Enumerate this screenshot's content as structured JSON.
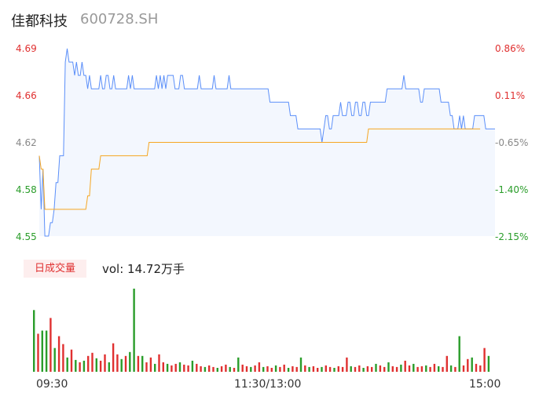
{
  "header": {
    "name": "佳都科技",
    "code": "600728.SH"
  },
  "price_axis": [
    {
      "label": "4.69",
      "color": "#e03030"
    },
    {
      "label": "4.66",
      "color": "#e03030"
    },
    {
      "label": "4.62",
      "color": "#888888"
    },
    {
      "label": "4.58",
      "color": "#2a9d2a"
    },
    {
      "label": "4.55",
      "color": "#2a9d2a"
    }
  ],
  "pct_axis": [
    {
      "label": "0.86%",
      "color": "#e03030"
    },
    {
      "label": "0.11%",
      "color": "#e03030"
    },
    {
      "label": "-0.65%",
      "color": "#888888"
    },
    {
      "label": "-1.40%",
      "color": "#2a9d2a"
    },
    {
      "label": "-2.15%",
      "color": "#2a9d2a"
    }
  ],
  "volume": {
    "badge": "日成交量",
    "text": "vol: 14.72万手"
  },
  "time_axis": [
    "09:30",
    "11:30/13:00",
    "15:00"
  ],
  "colors": {
    "price_line": "#5b8ff9",
    "avg_line": "#f5a623",
    "up": "#e03030",
    "down": "#2a9d2a",
    "area": "#f3f7fe"
  },
  "chart_data": {
    "type": "line",
    "ylim": [
      4.55,
      4.69
    ],
    "x_points": 241,
    "price_series": [
      4.61,
      4.57,
      4.6,
      4.55,
      4.55,
      4.55,
      4.56,
      4.56,
      4.57,
      4.59,
      4.59,
      4.61,
      4.61,
      4.61,
      4.68,
      4.69,
      4.68,
      4.68,
      4.68,
      4.67,
      4.68,
      4.67,
      4.67,
      4.68,
      4.67,
      4.67,
      4.66,
      4.67,
      4.66,
      4.66,
      4.66,
      4.66,
      4.66,
      4.67,
      4.66,
      4.66,
      4.67,
      4.67,
      4.66,
      4.66,
      4.67,
      4.66,
      4.66,
      4.66,
      4.66,
      4.66,
      4.66,
      4.66,
      4.67,
      4.66,
      4.67,
      4.66,
      4.66,
      4.66,
      4.66,
      4.66,
      4.66,
      4.66,
      4.66,
      4.66,
      4.66,
      4.66,
      4.66,
      4.67,
      4.66,
      4.67,
      4.66,
      4.67,
      4.66,
      4.67,
      4.67,
      4.67,
      4.67,
      4.66,
      4.66,
      4.66,
      4.67,
      4.67,
      4.66,
      4.66,
      4.66,
      4.66,
      4.66,
      4.66,
      4.66,
      4.66,
      4.67,
      4.66,
      4.66,
      4.66,
      4.66,
      4.66,
      4.66,
      4.66,
      4.67,
      4.66,
      4.66,
      4.66,
      4.66,
      4.66,
      4.66,
      4.66,
      4.67,
      4.66,
      4.66,
      4.66,
      4.66,
      4.66,
      4.66,
      4.66,
      4.66,
      4.66,
      4.66,
      4.66,
      4.66,
      4.66,
      4.66,
      4.66,
      4.66,
      4.66,
      4.66,
      4.66,
      4.66,
      4.66,
      4.65,
      4.65,
      4.65,
      4.65,
      4.65,
      4.65,
      4.65,
      4.65,
      4.65,
      4.65,
      4.65,
      4.64,
      4.64,
      4.64,
      4.64,
      4.63,
      4.63,
      4.63,
      4.63,
      4.63,
      4.63,
      4.63,
      4.63,
      4.63,
      4.63,
      4.63,
      4.63,
      4.63,
      4.62,
      4.63,
      4.64,
      4.64,
      4.63,
      4.63,
      4.64,
      4.64,
      4.64,
      4.64,
      4.65,
      4.64,
      4.64,
      4.64,
      4.65,
      4.65,
      4.64,
      4.64,
      4.65,
      4.65,
      4.64,
      4.64,
      4.65,
      4.65,
      4.64,
      4.64,
      4.65,
      4.65,
      4.65,
      4.65,
      4.65,
      4.65,
      4.65,
      4.65,
      4.65,
      4.66,
      4.66,
      4.66,
      4.66,
      4.66,
      4.66,
      4.66,
      4.66,
      4.66,
      4.67,
      4.66,
      4.66,
      4.66,
      4.66,
      4.66,
      4.66,
      4.66,
      4.66,
      4.65,
      4.65,
      4.66,
      4.66,
      4.66,
      4.66,
      4.66,
      4.66,
      4.66,
      4.66,
      4.66,
      4.65,
      4.65,
      4.65,
      4.65,
      4.65,
      4.64,
      4.64,
      4.63,
      4.63,
      4.63,
      4.64,
      4.63,
      4.64,
      4.63,
      4.63,
      4.63,
      4.63,
      4.63,
      4.64,
      4.64,
      4.64,
      4.64,
      4.64,
      4.64,
      4.63,
      4.63,
      4.63,
      4.63,
      4.63,
      4.63
    ],
    "avg_series": [
      4.61,
      4.6,
      4.6,
      4.57,
      4.57,
      4.57,
      4.57,
      4.57,
      4.57,
      4.57,
      4.57,
      4.57,
      4.57,
      4.57,
      4.57,
      4.57,
      4.57,
      4.57,
      4.57,
      4.57,
      4.57,
      4.57,
      4.57,
      4.57,
      4.57,
      4.57,
      4.58,
      4.58,
      4.6,
      4.6,
      4.6,
      4.6,
      4.6,
      4.61,
      4.61,
      4.61,
      4.61,
      4.61,
      4.61,
      4.61,
      4.61,
      4.61,
      4.61,
      4.61,
      4.61,
      4.61,
      4.61,
      4.61,
      4.61,
      4.61,
      4.61,
      4.61,
      4.61,
      4.61,
      4.61,
      4.61,
      4.61,
      4.61,
      4.61,
      4.62,
      4.62,
      4.62,
      4.62,
      4.62,
      4.62,
      4.62,
      4.62,
      4.62,
      4.62,
      4.62,
      4.62,
      4.62,
      4.62,
      4.62,
      4.62,
      4.62,
      4.62,
      4.62,
      4.62,
      4.62,
      4.62,
      4.62,
      4.62,
      4.62,
      4.62,
      4.62,
      4.62,
      4.62,
      4.62,
      4.62,
      4.62,
      4.62,
      4.62,
      4.62,
      4.62,
      4.62,
      4.62,
      4.62,
      4.62,
      4.62,
      4.62,
      4.62,
      4.62,
      4.62,
      4.62,
      4.62,
      4.62,
      4.62,
      4.62,
      4.62,
      4.62,
      4.62,
      4.62,
      4.62,
      4.62,
      4.62,
      4.62,
      4.62,
      4.62,
      4.62,
      4.62,
      4.62,
      4.62,
      4.62,
      4.62,
      4.62,
      4.62,
      4.62,
      4.62,
      4.62,
      4.62,
      4.62,
      4.62,
      4.62,
      4.62,
      4.62,
      4.62,
      4.62,
      4.62,
      4.62,
      4.62,
      4.62,
      4.62,
      4.62,
      4.62,
      4.62,
      4.62,
      4.62,
      4.62,
      4.62,
      4.62,
      4.62,
      4.62,
      4.62,
      4.62,
      4.62,
      4.62,
      4.62,
      4.62,
      4.62,
      4.62,
      4.62,
      4.62,
      4.62,
      4.62,
      4.62,
      4.62,
      4.62,
      4.62,
      4.62,
      4.62,
      4.62,
      4.62,
      4.62,
      4.62,
      4.62,
      4.62,
      4.63,
      4.63,
      4.63,
      4.63,
      4.63,
      4.63,
      4.63,
      4.63,
      4.63,
      4.63,
      4.63,
      4.63,
      4.63,
      4.63,
      4.63,
      4.63,
      4.63,
      4.63,
      4.63,
      4.63,
      4.63,
      4.63,
      4.63,
      4.63,
      4.63,
      4.63,
      4.63,
      4.63,
      4.63,
      4.63,
      4.63,
      4.63,
      4.63,
      4.63,
      4.63,
      4.63,
      4.63,
      4.63,
      4.63,
      4.63,
      4.63,
      4.63,
      4.63,
      4.63,
      4.63,
      4.63,
      4.63,
      4.63,
      4.63,
      4.63,
      4.63,
      4.63,
      4.63,
      4.63,
      4.63,
      4.63,
      4.63,
      4.63,
      4.63,
      4.63,
      4.63
    ],
    "volume_bars": [
      {
        "v": 78,
        "c": "down"
      },
      {
        "v": 48,
        "c": "up"
      },
      {
        "v": 52,
        "c": "down"
      },
      {
        "v": 52,
        "c": "down"
      },
      {
        "v": 68,
        "c": "up"
      },
      {
        "v": 30,
        "c": "down"
      },
      {
        "v": 45,
        "c": "up"
      },
      {
        "v": 35,
        "c": "up"
      },
      {
        "v": 18,
        "c": "down"
      },
      {
        "v": 28,
        "c": "up"
      },
      {
        "v": 15,
        "c": "down"
      },
      {
        "v": 12,
        "c": "up"
      },
      {
        "v": 14,
        "c": "down"
      },
      {
        "v": 20,
        "c": "up"
      },
      {
        "v": 24,
        "c": "up"
      },
      {
        "v": 17,
        "c": "down"
      },
      {
        "v": 14,
        "c": "up"
      },
      {
        "v": 22,
        "c": "up"
      },
      {
        "v": 12,
        "c": "down"
      },
      {
        "v": 36,
        "c": "up"
      },
      {
        "v": 22,
        "c": "up"
      },
      {
        "v": 16,
        "c": "down"
      },
      {
        "v": 20,
        "c": "up"
      },
      {
        "v": 25,
        "c": "down"
      },
      {
        "v": 105,
        "c": "down"
      },
      {
        "v": 20,
        "c": "up"
      },
      {
        "v": 20,
        "c": "down"
      },
      {
        "v": 12,
        "c": "up"
      },
      {
        "v": 18,
        "c": "up"
      },
      {
        "v": 10,
        "c": "down"
      },
      {
        "v": 22,
        "c": "up"
      },
      {
        "v": 12,
        "c": "up"
      },
      {
        "v": 10,
        "c": "down"
      },
      {
        "v": 8,
        "c": "up"
      },
      {
        "v": 10,
        "c": "up"
      },
      {
        "v": 12,
        "c": "down"
      },
      {
        "v": 9,
        "c": "up"
      },
      {
        "v": 8,
        "c": "up"
      },
      {
        "v": 14,
        "c": "down"
      },
      {
        "v": 10,
        "c": "up"
      },
      {
        "v": 7,
        "c": "up"
      },
      {
        "v": 6,
        "c": "down"
      },
      {
        "v": 8,
        "c": "up"
      },
      {
        "v": 6,
        "c": "up"
      },
      {
        "v": 5,
        "c": "down"
      },
      {
        "v": 7,
        "c": "up"
      },
      {
        "v": 9,
        "c": "up"
      },
      {
        "v": 6,
        "c": "down"
      },
      {
        "v": 5,
        "c": "up"
      },
      {
        "v": 18,
        "c": "down"
      },
      {
        "v": 9,
        "c": "up"
      },
      {
        "v": 7,
        "c": "up"
      },
      {
        "v": 6,
        "c": "down"
      },
      {
        "v": 8,
        "c": "up"
      },
      {
        "v": 12,
        "c": "up"
      },
      {
        "v": 6,
        "c": "down"
      },
      {
        "v": 7,
        "c": "up"
      },
      {
        "v": 5,
        "c": "up"
      },
      {
        "v": 8,
        "c": "down"
      },
      {
        "v": 6,
        "c": "up"
      },
      {
        "v": 9,
        "c": "up"
      },
      {
        "v": 5,
        "c": "down"
      },
      {
        "v": 7,
        "c": "up"
      },
      {
        "v": 6,
        "c": "up"
      },
      {
        "v": 18,
        "c": "down"
      },
      {
        "v": 8,
        "c": "up"
      },
      {
        "v": 6,
        "c": "down"
      },
      {
        "v": 7,
        "c": "up"
      },
      {
        "v": 5,
        "c": "up"
      },
      {
        "v": 6,
        "c": "down"
      },
      {
        "v": 8,
        "c": "up"
      },
      {
        "v": 6,
        "c": "up"
      },
      {
        "v": 5,
        "c": "down"
      },
      {
        "v": 7,
        "c": "up"
      },
      {
        "v": 6,
        "c": "up"
      },
      {
        "v": 18,
        "c": "up"
      },
      {
        "v": 7,
        "c": "down"
      },
      {
        "v": 6,
        "c": "up"
      },
      {
        "v": 8,
        "c": "up"
      },
      {
        "v": 5,
        "c": "down"
      },
      {
        "v": 7,
        "c": "up"
      },
      {
        "v": 6,
        "c": "up"
      },
      {
        "v": 10,
        "c": "down"
      },
      {
        "v": 8,
        "c": "up"
      },
      {
        "v": 6,
        "c": "up"
      },
      {
        "v": 12,
        "c": "down"
      },
      {
        "v": 7,
        "c": "up"
      },
      {
        "v": 6,
        "c": "up"
      },
      {
        "v": 9,
        "c": "down"
      },
      {
        "v": 14,
        "c": "up"
      },
      {
        "v": 8,
        "c": "up"
      },
      {
        "v": 10,
        "c": "down"
      },
      {
        "v": 6,
        "c": "up"
      },
      {
        "v": 7,
        "c": "up"
      },
      {
        "v": 8,
        "c": "down"
      },
      {
        "v": 6,
        "c": "up"
      },
      {
        "v": 10,
        "c": "up"
      },
      {
        "v": 7,
        "c": "down"
      },
      {
        "v": 6,
        "c": "up"
      },
      {
        "v": 20,
        "c": "up"
      },
      {
        "v": 8,
        "c": "down"
      },
      {
        "v": 6,
        "c": "up"
      },
      {
        "v": 45,
        "c": "down"
      },
      {
        "v": 8,
        "c": "up"
      },
      {
        "v": 16,
        "c": "up"
      },
      {
        "v": 18,
        "c": "down"
      },
      {
        "v": 10,
        "c": "up"
      },
      {
        "v": 8,
        "c": "up"
      },
      {
        "v": 30,
        "c": "up"
      },
      {
        "v": 20,
        "c": "down"
      }
    ]
  }
}
